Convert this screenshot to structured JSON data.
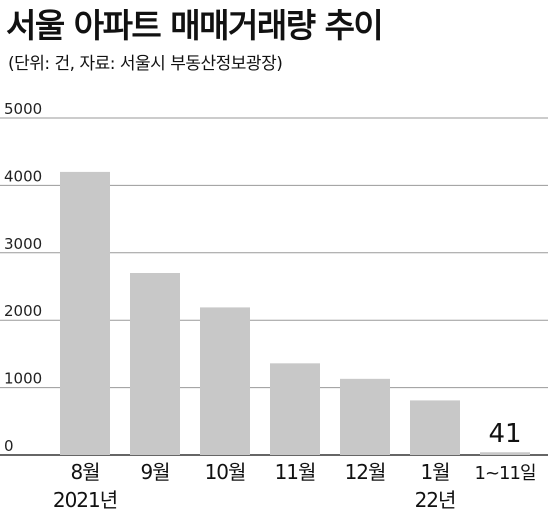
{
  "title": "서울 아파트 매매거래량 추이",
  "subtitle": "(단위: 건, 자료: 서울시 부동산정보광장)",
  "chart_data": {
    "type": "bar",
    "categories": [
      "8월",
      "9월",
      "10월",
      "11월",
      "12월",
      "1월",
      "1~11일"
    ],
    "group_labels": [
      "2021년",
      "22년"
    ],
    "values": [
      4200,
      2700,
      2190,
      1360,
      1130,
      810,
      41
    ],
    "data_labels": [
      "",
      "",
      "",
      "",
      "",
      "",
      "41"
    ],
    "ylim": [
      0,
      5000
    ],
    "yticks": [
      "0",
      "1000",
      "2000",
      "3000",
      "4000",
      "5000"
    ],
    "grid": true,
    "colors": {
      "bar": "#c8c8c8",
      "grid": "#9a9a9a",
      "text": "#111111"
    }
  }
}
